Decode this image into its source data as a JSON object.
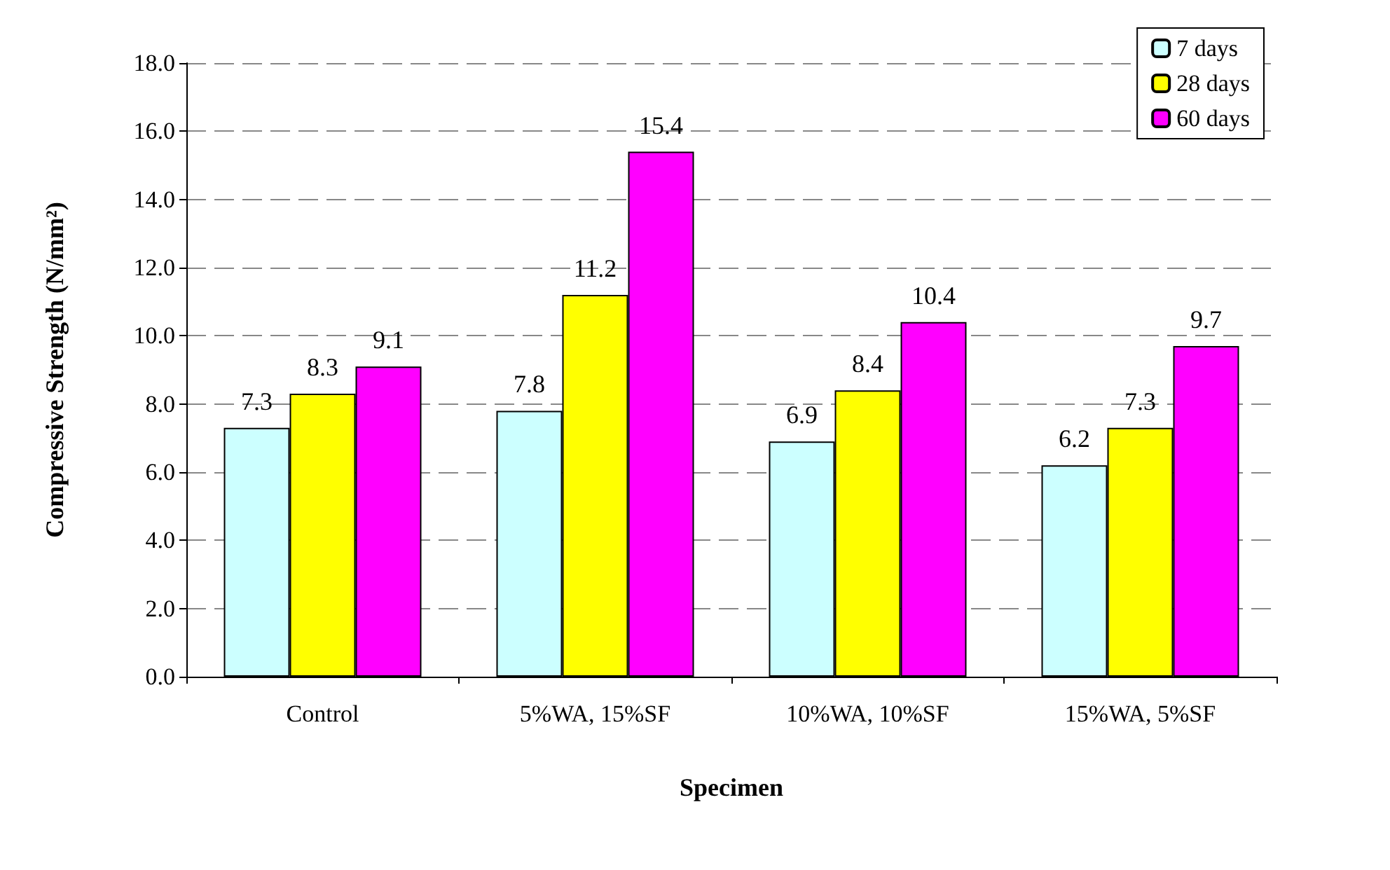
{
  "chart_data": {
    "type": "bar",
    "xlabel": "Specimen",
    "ylabel": "Compressive Strength (N/mm²)",
    "categories": [
      "Control",
      "5%WA, 15%SF",
      "10%WA, 10%SF",
      "15%WA, 5%SF"
    ],
    "series": [
      {
        "name": "7 days",
        "color": "#ccffff",
        "values": [
          7.3,
          7.8,
          6.9,
          6.2
        ]
      },
      {
        "name": "28 days",
        "color": "#ffff00",
        "values": [
          8.3,
          11.2,
          8.4,
          7.3
        ]
      },
      {
        "name": "60 days",
        "color": "#ff00ff",
        "values": [
          9.1,
          15.4,
          10.4,
          9.7
        ]
      }
    ],
    "ylim": [
      0,
      18
    ],
    "yticks": [
      {
        "value": 0,
        "label": "0.0"
      },
      {
        "value": 2,
        "label": "2.0"
      },
      {
        "value": 4,
        "label": "4.0"
      },
      {
        "value": 6,
        "label": "6.0"
      },
      {
        "value": 8,
        "label": "8.0"
      },
      {
        "value": 10,
        "label": "10.0"
      },
      {
        "value": 12,
        "label": "12.0"
      },
      {
        "value": 14,
        "label": "14.0"
      },
      {
        "value": 16,
        "label": "16.0"
      },
      {
        "value": 18,
        "label": "18.0"
      }
    ],
    "grid": "y",
    "legend": "top right",
    "data_labels": true
  }
}
